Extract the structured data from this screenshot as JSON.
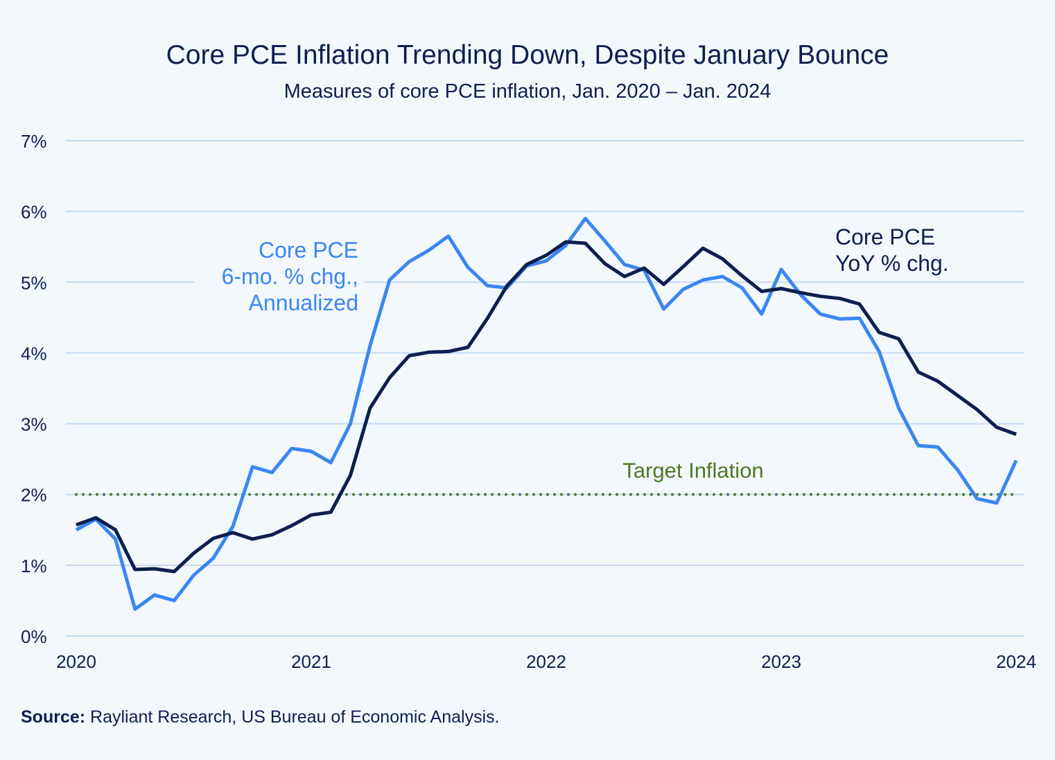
{
  "chart_data": {
    "type": "line",
    "title": "Core PCE Inflation Trending Down, Despite January Bounce",
    "subtitle": "Measures of core PCE inflation, Jan. 2020 – Jan. 2024",
    "xlabel": "",
    "ylabel": "",
    "ylim": [
      0,
      7
    ],
    "y_ticks": [
      "0%",
      "1%",
      "2%",
      "3%",
      "4%",
      "5%",
      "6%",
      "7%"
    ],
    "x_ticks": [
      "2020",
      "2021",
      "2022",
      "2023",
      "2024"
    ],
    "x_start": "Jan 2020",
    "x_end": "Jan 2024",
    "grid": true,
    "series": [
      {
        "name": "Core PCE YoY % chg.",
        "label_lines": [
          "Core PCE",
          "YoY % chg."
        ],
        "color": "#0d1f4f",
        "values": [
          1.57,
          1.67,
          1.5,
          0.94,
          0.95,
          0.91,
          1.17,
          1.38,
          1.46,
          1.37,
          1.43,
          1.56,
          1.71,
          1.75,
          2.27,
          3.22,
          3.65,
          3.96,
          4.01,
          4.02,
          4.08,
          4.49,
          4.95,
          5.25,
          5.38,
          5.57,
          5.55,
          5.26,
          5.08,
          5.2,
          4.97,
          5.22,
          5.48,
          5.33,
          5.09,
          4.87,
          4.91,
          4.85,
          4.8,
          4.77,
          4.69,
          4.29,
          4.2,
          3.73,
          3.6,
          3.4,
          3.2,
          2.95,
          2.85
        ]
      },
      {
        "name": "Core PCE 6-mo. % chg., Annualized",
        "label_lines": [
          "Core PCE",
          "6-mo. % chg.,",
          "Annualized"
        ],
        "color": "#3b86f0",
        "values": [
          1.5,
          1.65,
          1.37,
          0.38,
          0.58,
          0.5,
          0.86,
          1.1,
          1.55,
          2.39,
          2.31,
          2.65,
          2.61,
          2.45,
          3.0,
          4.1,
          5.03,
          5.29,
          5.45,
          5.65,
          5.21,
          4.95,
          4.92,
          5.23,
          5.3,
          5.52,
          5.9,
          5.58,
          5.25,
          5.17,
          4.62,
          4.9,
          5.03,
          5.08,
          4.92,
          4.55,
          5.18,
          4.82,
          4.55,
          4.48,
          4.49,
          4.02,
          3.22,
          2.69,
          2.67,
          2.35,
          1.94,
          1.88,
          2.48
        ]
      }
    ],
    "annotations": [
      {
        "text": "Target Inflation",
        "y": 2,
        "color": "#4a7a23",
        "style": "dotted"
      }
    ]
  },
  "source": {
    "label": "Source:",
    "text": " Rayliant Research, US Bureau of Economic Analysis."
  }
}
